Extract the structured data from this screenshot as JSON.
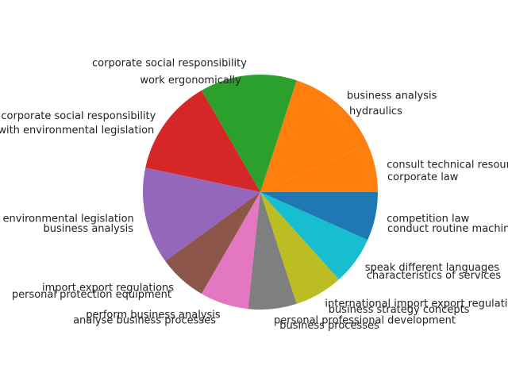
{
  "chart_data": {
    "type": "pie",
    "title": "",
    "start_angle_deg": 0,
    "direction": "counterclockwise",
    "legend": "none",
    "slices": [
      {
        "outer_label": "consult technical resources",
        "inner_label": "corporate law",
        "value": 5.0,
        "color": "#ff7f0e"
      },
      {
        "outer_label": "business analysis",
        "inner_label": "hydraulics",
        "value": 10.0,
        "color": "#ff7f0e"
      },
      {
        "outer_label": "corporate social responsibility",
        "inner_label": "work ergonomically",
        "value": 10.0,
        "color": "#2ca02c"
      },
      {
        "outer_label": "corporate social responsibility",
        "inner_label": "compliance with environmental legislation",
        "value": 10.0,
        "color": "#d62728"
      },
      {
        "outer_label": "compliance with environmental legislation",
        "inner_label": "business analysis",
        "value": 10.0,
        "color": "#9467bd"
      },
      {
        "outer_label": "import export regulations",
        "inner_label": "personal protection equipment",
        "value": 5.0,
        "color": "#8c564b"
      },
      {
        "outer_label": "perform business analysis",
        "inner_label": "analyse business processes",
        "value": 5.0,
        "color": "#e377c2"
      },
      {
        "outer_label": "personal professional development",
        "inner_label": "business processes",
        "value": 5.0,
        "color": "#7f7f7f"
      },
      {
        "outer_label": "international import export regulations",
        "inner_label": "business strategy concepts",
        "value": 5.0,
        "color": "#bcbd22"
      },
      {
        "outer_label": "speak different languages",
        "inner_label": "characteristics of services",
        "value": 5.0,
        "color": "#17becf"
      },
      {
        "outer_label": "competition law",
        "inner_label": "conduct routine machinery checks",
        "value": 5.0,
        "color": "#1f77b4"
      }
    ]
  }
}
